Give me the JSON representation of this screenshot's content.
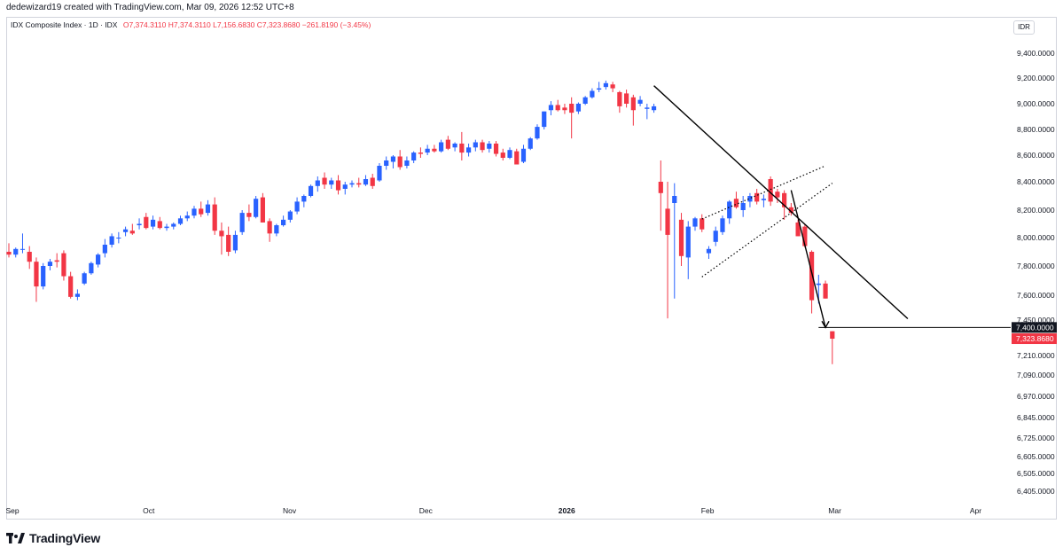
{
  "header": {
    "credit": "dedewizard19 created with TradingView.com, Mar 09, 2026 12:52 UTC+8"
  },
  "legend": {
    "symbol": "IDX Composite Index · 1D · IDX",
    "ohlc": "O7,374.3110 H7,374.3110 L7,156.6830 C7,323.8680 −261.8190 (−3.45%)"
  },
  "currency": "IDR",
  "brand": "TradingView",
  "chart_data": {
    "type": "candlestick",
    "series_name": "IDX Composite Index",
    "y_ticks": [
      "9,400.0000",
      "9,200.0000",
      "9,000.0000",
      "8,800.0000",
      "8,600.0000",
      "8,400.0000",
      "8,200.0000",
      "8,000.0000",
      "7,800.0000",
      "7,600.0000",
      "7,450.0000",
      "7,210.0000",
      "7,090.0000",
      "6,970.0000",
      "6,845.0000",
      "6,725.0000",
      "6,605.0000",
      "6,505.0000",
      "6,405.0000"
    ],
    "x_labels": [
      {
        "label": "Sep",
        "date": "2025-09-01",
        "bold": false
      },
      {
        "label": "Oct",
        "date": "2025-10-01",
        "bold": false
      },
      {
        "label": "Nov",
        "date": "2025-11-01",
        "bold": false
      },
      {
        "label": "Dec",
        "date": "2025-12-01",
        "bold": false
      },
      {
        "label": "2026",
        "date": "2026-01-01",
        "bold": true
      },
      {
        "label": "Feb",
        "date": "2026-02-01",
        "bold": false
      },
      {
        "label": "Mar",
        "date": "2026-03-01",
        "bold": false
      },
      {
        "label": "Apr",
        "date": "2026-04-01",
        "bold": false
      }
    ],
    "price_labels": [
      {
        "value": 7400,
        "text": "7,400.0000",
        "bg": "#131722"
      },
      {
        "value": 7323.868,
        "text": "7,323.8680",
        "bg": "#f23645"
      }
    ],
    "up_color": "#2962ff",
    "down_color": "#f23645",
    "candles": [
      {
        "o": 7900,
        "h": 7960,
        "l": 7860,
        "c": 7880
      },
      {
        "o": 7880,
        "h": 7930,
        "l": 7860,
        "c": 7920
      },
      {
        "o": 7920,
        "h": 8030,
        "l": 7890,
        "c": 7920
      },
      {
        "o": 7900,
        "h": 7940,
        "l": 7780,
        "c": 7830
      },
      {
        "o": 7830,
        "h": 7860,
        "l": 7560,
        "c": 7660
      },
      {
        "o": 7660,
        "h": 7820,
        "l": 7640,
        "c": 7800
      },
      {
        "o": 7800,
        "h": 7850,
        "l": 7770,
        "c": 7830
      },
      {
        "o": 7840,
        "h": 7890,
        "l": 7790,
        "c": 7830
      },
      {
        "o": 7890,
        "h": 7910,
        "l": 7700,
        "c": 7730
      },
      {
        "o": 7730,
        "h": 7760,
        "l": 7580,
        "c": 7590
      },
      {
        "o": 7590,
        "h": 7640,
        "l": 7570,
        "c": 7610
      },
      {
        "o": 7680,
        "h": 7760,
        "l": 7670,
        "c": 7750
      },
      {
        "o": 7750,
        "h": 7830,
        "l": 7740,
        "c": 7820
      },
      {
        "o": 7810,
        "h": 7890,
        "l": 7790,
        "c": 7880
      },
      {
        "o": 7890,
        "h": 7990,
        "l": 7860,
        "c": 7950
      },
      {
        "o": 7950,
        "h": 8030,
        "l": 7930,
        "c": 8010
      },
      {
        "o": 8000,
        "h": 8040,
        "l": 7960,
        "c": 8000
      },
      {
        "o": 8040,
        "h": 8080,
        "l": 8010,
        "c": 8060
      },
      {
        "o": 8050,
        "h": 8100,
        "l": 8020,
        "c": 8030
      },
      {
        "o": 8090,
        "h": 8140,
        "l": 8060,
        "c": 8100
      },
      {
        "o": 8150,
        "h": 8180,
        "l": 8060,
        "c": 8070
      },
      {
        "o": 8080,
        "h": 8160,
        "l": 8060,
        "c": 8130
      },
      {
        "o": 8120,
        "h": 8150,
        "l": 8060,
        "c": 8070
      },
      {
        "o": 8070,
        "h": 8100,
        "l": 8050,
        "c": 8080
      },
      {
        "o": 8080,
        "h": 8110,
        "l": 8060,
        "c": 8100
      },
      {
        "o": 8100,
        "h": 8160,
        "l": 8090,
        "c": 8140
      },
      {
        "o": 8140,
        "h": 8190,
        "l": 8120,
        "c": 8160
      },
      {
        "o": 8160,
        "h": 8230,
        "l": 8140,
        "c": 8210
      },
      {
        "o": 8210,
        "h": 8260,
        "l": 8150,
        "c": 8170
      },
      {
        "o": 8180,
        "h": 8270,
        "l": 8160,
        "c": 8240
      },
      {
        "o": 8240,
        "h": 8290,
        "l": 8020,
        "c": 8050
      },
      {
        "o": 8050,
        "h": 8110,
        "l": 7880,
        "c": 8010
      },
      {
        "o": 8020,
        "h": 8080,
        "l": 7870,
        "c": 7900
      },
      {
        "o": 7910,
        "h": 8050,
        "l": 7890,
        "c": 8020
      },
      {
        "o": 8040,
        "h": 8200,
        "l": 8020,
        "c": 8180
      },
      {
        "o": 8180,
        "h": 8240,
        "l": 8120,
        "c": 8150
      },
      {
        "o": 8150,
        "h": 8300,
        "l": 8140,
        "c": 8280
      },
      {
        "o": 8290,
        "h": 8320,
        "l": 8110,
        "c": 8110
      },
      {
        "o": 8120,
        "h": 8140,
        "l": 7970,
        "c": 8030
      },
      {
        "o": 8030,
        "h": 8100,
        "l": 8010,
        "c": 8090
      },
      {
        "o": 8090,
        "h": 8160,
        "l": 8080,
        "c": 8130
      },
      {
        "o": 8130,
        "h": 8200,
        "l": 8110,
        "c": 8190
      },
      {
        "o": 8190,
        "h": 8290,
        "l": 8170,
        "c": 8260
      },
      {
        "o": 8260,
        "h": 8310,
        "l": 8220,
        "c": 8300
      },
      {
        "o": 8300,
        "h": 8380,
        "l": 8290,
        "c": 8370
      },
      {
        "o": 8370,
        "h": 8440,
        "l": 8330,
        "c": 8410
      },
      {
        "o": 8430,
        "h": 8470,
        "l": 8350,
        "c": 8380
      },
      {
        "o": 8380,
        "h": 8430,
        "l": 8350,
        "c": 8410
      },
      {
        "o": 8410,
        "h": 8450,
        "l": 8310,
        "c": 8340
      },
      {
        "o": 8350,
        "h": 8400,
        "l": 8310,
        "c": 8380
      },
      {
        "o": 8380,
        "h": 8410,
        "l": 8360,
        "c": 8390
      },
      {
        "o": 8390,
        "h": 8430,
        "l": 8360,
        "c": 8380
      },
      {
        "o": 8380,
        "h": 8450,
        "l": 8370,
        "c": 8420
      },
      {
        "o": 8430,
        "h": 8460,
        "l": 8350,
        "c": 8370
      },
      {
        "o": 8410,
        "h": 8540,
        "l": 8400,
        "c": 8520
      },
      {
        "o": 8520,
        "h": 8590,
        "l": 8490,
        "c": 8560
      },
      {
        "o": 8550,
        "h": 8600,
        "l": 8500,
        "c": 8590
      },
      {
        "o": 8590,
        "h": 8640,
        "l": 8490,
        "c": 8510
      },
      {
        "o": 8520,
        "h": 8590,
        "l": 8500,
        "c": 8560
      },
      {
        "o": 8560,
        "h": 8630,
        "l": 8540,
        "c": 8620
      },
      {
        "o": 8620,
        "h": 8660,
        "l": 8580,
        "c": 8610
      },
      {
        "o": 8620,
        "h": 8680,
        "l": 8600,
        "c": 8650
      },
      {
        "o": 8650,
        "h": 8680,
        "l": 8620,
        "c": 8630
      },
      {
        "o": 8630,
        "h": 8720,
        "l": 8620,
        "c": 8700
      },
      {
        "o": 8720,
        "h": 8750,
        "l": 8640,
        "c": 8650
      },
      {
        "o": 8660,
        "h": 8700,
        "l": 8630,
        "c": 8690
      },
      {
        "o": 8690,
        "h": 8780,
        "l": 8560,
        "c": 8620
      },
      {
        "o": 8620,
        "h": 8690,
        "l": 8590,
        "c": 8660
      },
      {
        "o": 8660,
        "h": 8720,
        "l": 8630,
        "c": 8700
      },
      {
        "o": 8700,
        "h": 8720,
        "l": 8620,
        "c": 8640
      },
      {
        "o": 8650,
        "h": 8710,
        "l": 8620,
        "c": 8690
      },
      {
        "o": 8690,
        "h": 8710,
        "l": 8590,
        "c": 8610
      },
      {
        "o": 8620,
        "h": 8650,
        "l": 8560,
        "c": 8580
      },
      {
        "o": 8580,
        "h": 8660,
        "l": 8570,
        "c": 8640
      },
      {
        "o": 8630,
        "h": 8650,
        "l": 8530,
        "c": 8530
      },
      {
        "o": 8550,
        "h": 8680,
        "l": 8540,
        "c": 8650
      },
      {
        "o": 8650,
        "h": 8740,
        "l": 8640,
        "c": 8730
      },
      {
        "o": 8730,
        "h": 8840,
        "l": 8720,
        "c": 8820
      },
      {
        "o": 8820,
        "h": 8940,
        "l": 8800,
        "c": 8940
      },
      {
        "o": 8950,
        "h": 9020,
        "l": 8910,
        "c": 8990
      },
      {
        "o": 8990,
        "h": 9030,
        "l": 8940,
        "c": 8950
      },
      {
        "o": 8970,
        "h": 9000,
        "l": 8920,
        "c": 8950
      },
      {
        "o": 9000,
        "h": 9050,
        "l": 8730,
        "c": 8930
      },
      {
        "o": 8940,
        "h": 9010,
        "l": 8920,
        "c": 9000
      },
      {
        "o": 9000,
        "h": 9060,
        "l": 8990,
        "c": 9050
      },
      {
        "o": 9050,
        "h": 9120,
        "l": 9040,
        "c": 9100
      },
      {
        "o": 9110,
        "h": 9170,
        "l": 9090,
        "c": 9120
      },
      {
        "o": 9130,
        "h": 9180,
        "l": 9110,
        "c": 9160
      },
      {
        "o": 9150,
        "h": 9170,
        "l": 9090,
        "c": 9120
      },
      {
        "o": 9090,
        "h": 9100,
        "l": 8930,
        "c": 8980
      },
      {
        "o": 9080,
        "h": 9110,
        "l": 8970,
        "c": 9000
      },
      {
        "o": 9050,
        "h": 9070,
        "l": 8830,
        "c": 8950
      },
      {
        "o": 9000,
        "h": 9060,
        "l": 8980,
        "c": 9030
      },
      {
        "o": 8960,
        "h": 9000,
        "l": 8880,
        "c": 8970
      },
      {
        "o": 8950,
        "h": 9000,
        "l": 8930,
        "c": 8980
      },
      {
        "o": 8400,
        "h": 8560,
        "l": 8050,
        "c": 8320
      },
      {
        "o": 8210,
        "h": 8400,
        "l": 7460,
        "c": 8020
      },
      {
        "o": 8250,
        "h": 8390,
        "l": 7580,
        "c": 8300
      },
      {
        "o": 8130,
        "h": 8180,
        "l": 7800,
        "c": 7870
      },
      {
        "o": 7860,
        "h": 8120,
        "l": 7710,
        "c": 8080
      },
      {
        "o": 8080,
        "h": 8150,
        "l": 8050,
        "c": 8140
      },
      {
        "o": 8140,
        "h": 8170,
        "l": 8040,
        "c": 8060
      },
      {
        "o": 7890,
        "h": 7940,
        "l": 7850,
        "c": 7920
      },
      {
        "o": 7970,
        "h": 8080,
        "l": 7940,
        "c": 8050
      },
      {
        "o": 8040,
        "h": 8160,
        "l": 8020,
        "c": 8140
      },
      {
        "o": 8140,
        "h": 8270,
        "l": 8100,
        "c": 8260
      },
      {
        "o": 8280,
        "h": 8330,
        "l": 8210,
        "c": 8220
      },
      {
        "o": 8200,
        "h": 8300,
        "l": 8150,
        "c": 8250
      },
      {
        "o": 8260,
        "h": 8320,
        "l": 8220,
        "c": 8300
      },
      {
        "o": 8320,
        "h": 8350,
        "l": 8240,
        "c": 8260
      },
      {
        "o": 8270,
        "h": 8310,
        "l": 8220,
        "c": 8280
      },
      {
        "o": 8420,
        "h": 8440,
        "l": 8230,
        "c": 8260
      },
      {
        "o": 8330,
        "h": 8350,
        "l": 8250,
        "c": 8290
      },
      {
        "o": 8320,
        "h": 8340,
        "l": 8130,
        "c": 8220
      },
      {
        "o": 8220,
        "h": 8250,
        "l": 8160,
        "c": 8180
      },
      {
        "o": 8110,
        "h": 8130,
        "l": 8010,
        "c": 8010
      },
      {
        "o": 8080,
        "h": 8100,
        "l": 7930,
        "c": 7940
      },
      {
        "o": 7900,
        "h": 7910,
        "l": 7490,
        "c": 7570
      },
      {
        "o": 7670,
        "h": 7740,
        "l": 7550,
        "c": 7680
      },
      {
        "o": 7680,
        "h": 7700,
        "l": 7580,
        "c": 7580
      },
      {
        "o": 7374.311,
        "h": 7374.311,
        "l": 7156.683,
        "c": 7323.868
      }
    ],
    "drawings": {
      "downtrend_line": [
        [
          94,
          9140
        ],
        [
          131,
          7458
        ]
      ],
      "wedge_upper": [
        [
          101,
          8135
        ],
        [
          119,
          8520
        ]
      ],
      "wedge_lower": [
        [
          101,
          7725
        ],
        [
          120,
          8390
        ]
      ],
      "drop_arrow": [
        [
          114,
          8340
        ],
        [
          119,
          7400
        ]
      ],
      "support_line": [
        [
          118,
          7400
        ],
        [
          131,
          7400
        ]
      ]
    }
  }
}
